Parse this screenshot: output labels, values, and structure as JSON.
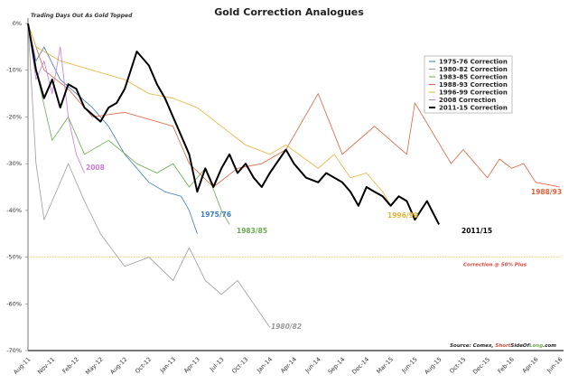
{
  "chart_data": {
    "type": "line",
    "title": "Gold Correction Analogues",
    "subtitle": "Trading Days Out As Gold Topped",
    "xlabel": "",
    "ylabel": "",
    "ylim": [
      -70,
      0
    ],
    "yticks": [
      "0%",
      "-10%",
      "-20%",
      "-30%",
      "-40%",
      "-50%",
      "-60%",
      "-70%"
    ],
    "ytick_values": [
      0,
      -10,
      -20,
      -30,
      -40,
      -50,
      -60,
      -70
    ],
    "xticks": [
      "Aug-11",
      "Nov-11",
      "Feb-12",
      "May-12",
      "Aug-12",
      "Oct-12",
      "Jan-13",
      "Apr-13",
      "Jul-13",
      "Oct-13",
      "Jan-14",
      "Apr-14",
      "Jun-14",
      "Sep-14",
      "Dec-14",
      "Mar-15",
      "Jun-15",
      "Aug-15",
      "Oct-15",
      "Dec-15",
      "Feb-16",
      "Apr-16",
      "Jun-16"
    ],
    "grid": false,
    "legend_placement": "top-right",
    "threshold": {
      "value": -50,
      "label": "Correction @ 50% Plus",
      "color": "#e8b33a",
      "label_color": "#d9453a"
    },
    "source": {
      "prefix": "Source: Comex, ",
      "parts": [
        {
          "text": "Short",
          "color": "#d9453a"
        },
        {
          "text": "SideOf",
          "color": "#222222"
        },
        {
          "text": "Long",
          "color": "#6aa84f"
        },
        {
          "text": ".com",
          "color": "#222222"
        }
      ]
    },
    "series": [
      {
        "name": "1975-76 Correction",
        "label": "1975/76",
        "color": "#3a7abf",
        "width": 0.8,
        "x": [
          "2011-08",
          "2011-09",
          "2011-10",
          "2011-12",
          "2012-02",
          "2012-04",
          "2012-06",
          "2012-08",
          "2012-10",
          "2012-12",
          "2013-02",
          "2013-03",
          "2013-04"
        ],
        "y": [
          0,
          -8,
          -5,
          -12,
          -15,
          -18,
          -22,
          -28,
          -34,
          -36,
          -37,
          -40,
          -45
        ]
      },
      {
        "name": "1980-82 Correction",
        "label": "1980/82",
        "color": "#9a9a9a",
        "width": 0.8,
        "x": [
          "2011-08",
          "2011-09",
          "2011-10",
          "2011-11",
          "2012-01",
          "2012-03",
          "2012-05",
          "2012-08",
          "2012-10",
          "2013-01",
          "2013-03",
          "2013-05",
          "2013-07",
          "2013-09",
          "2013-11",
          "2014-01"
        ],
        "y": [
          0,
          -30,
          -42,
          -38,
          -30,
          -38,
          -45,
          -52,
          -50,
          -55,
          -48,
          -55,
          -58,
          -55,
          -60,
          -65
        ]
      },
      {
        "name": "1983-85 Correction",
        "label": "1983/85",
        "color": "#6aa84f",
        "width": 0.8,
        "x": [
          "2011-08",
          "2011-09",
          "2011-11",
          "2012-01",
          "2012-03",
          "2012-06",
          "2012-09",
          "2012-11",
          "2013-01",
          "2013-03",
          "2013-05",
          "2013-07",
          "2013-08"
        ],
        "y": [
          0,
          -10,
          -25,
          -20,
          -28,
          -25,
          -30,
          -32,
          -30,
          -35,
          -31,
          -40,
          -43
        ]
      },
      {
        "name": "1988-93 Correction",
        "label": "1988/93",
        "color": "#e0603a",
        "width": 0.8,
        "x": [
          "2011-08",
          "2011-10",
          "2012-01",
          "2012-04",
          "2012-08",
          "2013-01",
          "2013-03",
          "2013-06",
          "2013-09",
          "2013-12",
          "2014-03",
          "2014-06",
          "2014-09",
          "2015-01",
          "2015-05",
          "2015-06",
          "2015-09",
          "2015-10",
          "2015-12",
          "2016-01",
          "2016-02",
          "2016-03",
          "2016-04",
          "2016-06"
        ],
        "y": [
          0,
          -10,
          -14,
          -20,
          -19,
          -22,
          -30,
          -35,
          -31,
          -30,
          -27,
          -15,
          -28,
          -22,
          -28,
          -17,
          -30,
          -27,
          -33,
          -29,
          -31,
          -30,
          -34,
          -35
        ]
      },
      {
        "name": "1996-99 Correction",
        "label": "1996/99",
        "color": "#e8b33a",
        "width": 0.8,
        "x": [
          "2011-08",
          "2011-09",
          "2011-12",
          "2012-04",
          "2012-08",
          "2012-10",
          "2013-01",
          "2013-04",
          "2013-07",
          "2013-10",
          "2014-01",
          "2014-03",
          "2014-06",
          "2014-08",
          "2014-10",
          "2014-12",
          "2015-02",
          "2015-03"
        ],
        "y": [
          0,
          -5,
          -8,
          -10,
          -12,
          -15,
          -16,
          -18,
          -22,
          -26,
          -28,
          -26,
          -31,
          -28,
          -33,
          -32,
          -36,
          -39
        ]
      },
      {
        "name": "2008 Correction",
        "label": "2008",
        "color": "#c87ad8",
        "width": 0.8,
        "x": [
          "2011-08",
          "2011-09",
          "2011-10",
          "2011-11",
          "2011-12",
          "2012-01",
          "2012-02",
          "2012-03"
        ],
        "y": [
          0,
          -12,
          -8,
          -15,
          -5,
          -20,
          -28,
          -32
        ]
      },
      {
        "name": "2011-15 Correction",
        "label": "2011/15",
        "color": "#000000",
        "width": 2,
        "x": [
          "2011-08",
          "2011-09",
          "2011-10",
          "2011-11",
          "2011-12",
          "2012-01",
          "2012-02",
          "2012-03",
          "2012-05",
          "2012-06",
          "2012-07",
          "2012-08",
          "2012-09",
          "2012-10",
          "2012-11",
          "2012-12",
          "2013-01",
          "2013-02",
          "2013-03",
          "2013-04",
          "2013-05",
          "2013-06",
          "2013-07",
          "2013-08",
          "2013-09",
          "2013-10",
          "2013-11",
          "2013-12",
          "2014-01",
          "2014-03",
          "2014-04",
          "2014-05",
          "2014-06",
          "2014-07",
          "2014-09",
          "2014-10",
          "2014-11",
          "2014-12",
          "2015-01",
          "2015-02",
          "2015-03",
          "2015-04",
          "2015-05",
          "2015-06",
          "2015-07",
          "2015-08"
        ],
        "y": [
          0,
          -10,
          -16,
          -12,
          -18,
          -13,
          -14,
          -18,
          -21,
          -18,
          -17,
          -14,
          -6,
          -9,
          -13,
          -16,
          -20,
          -24,
          -28,
          -36,
          -31,
          -35,
          -31,
          -28,
          -32,
          -30,
          -33,
          -35,
          -32,
          -27,
          -30,
          -33,
          -34,
          -32,
          -34,
          -36,
          -39,
          -35,
          -36,
          -37,
          -39,
          -37,
          -38,
          -42,
          -38,
          -43
        ]
      }
    ]
  }
}
